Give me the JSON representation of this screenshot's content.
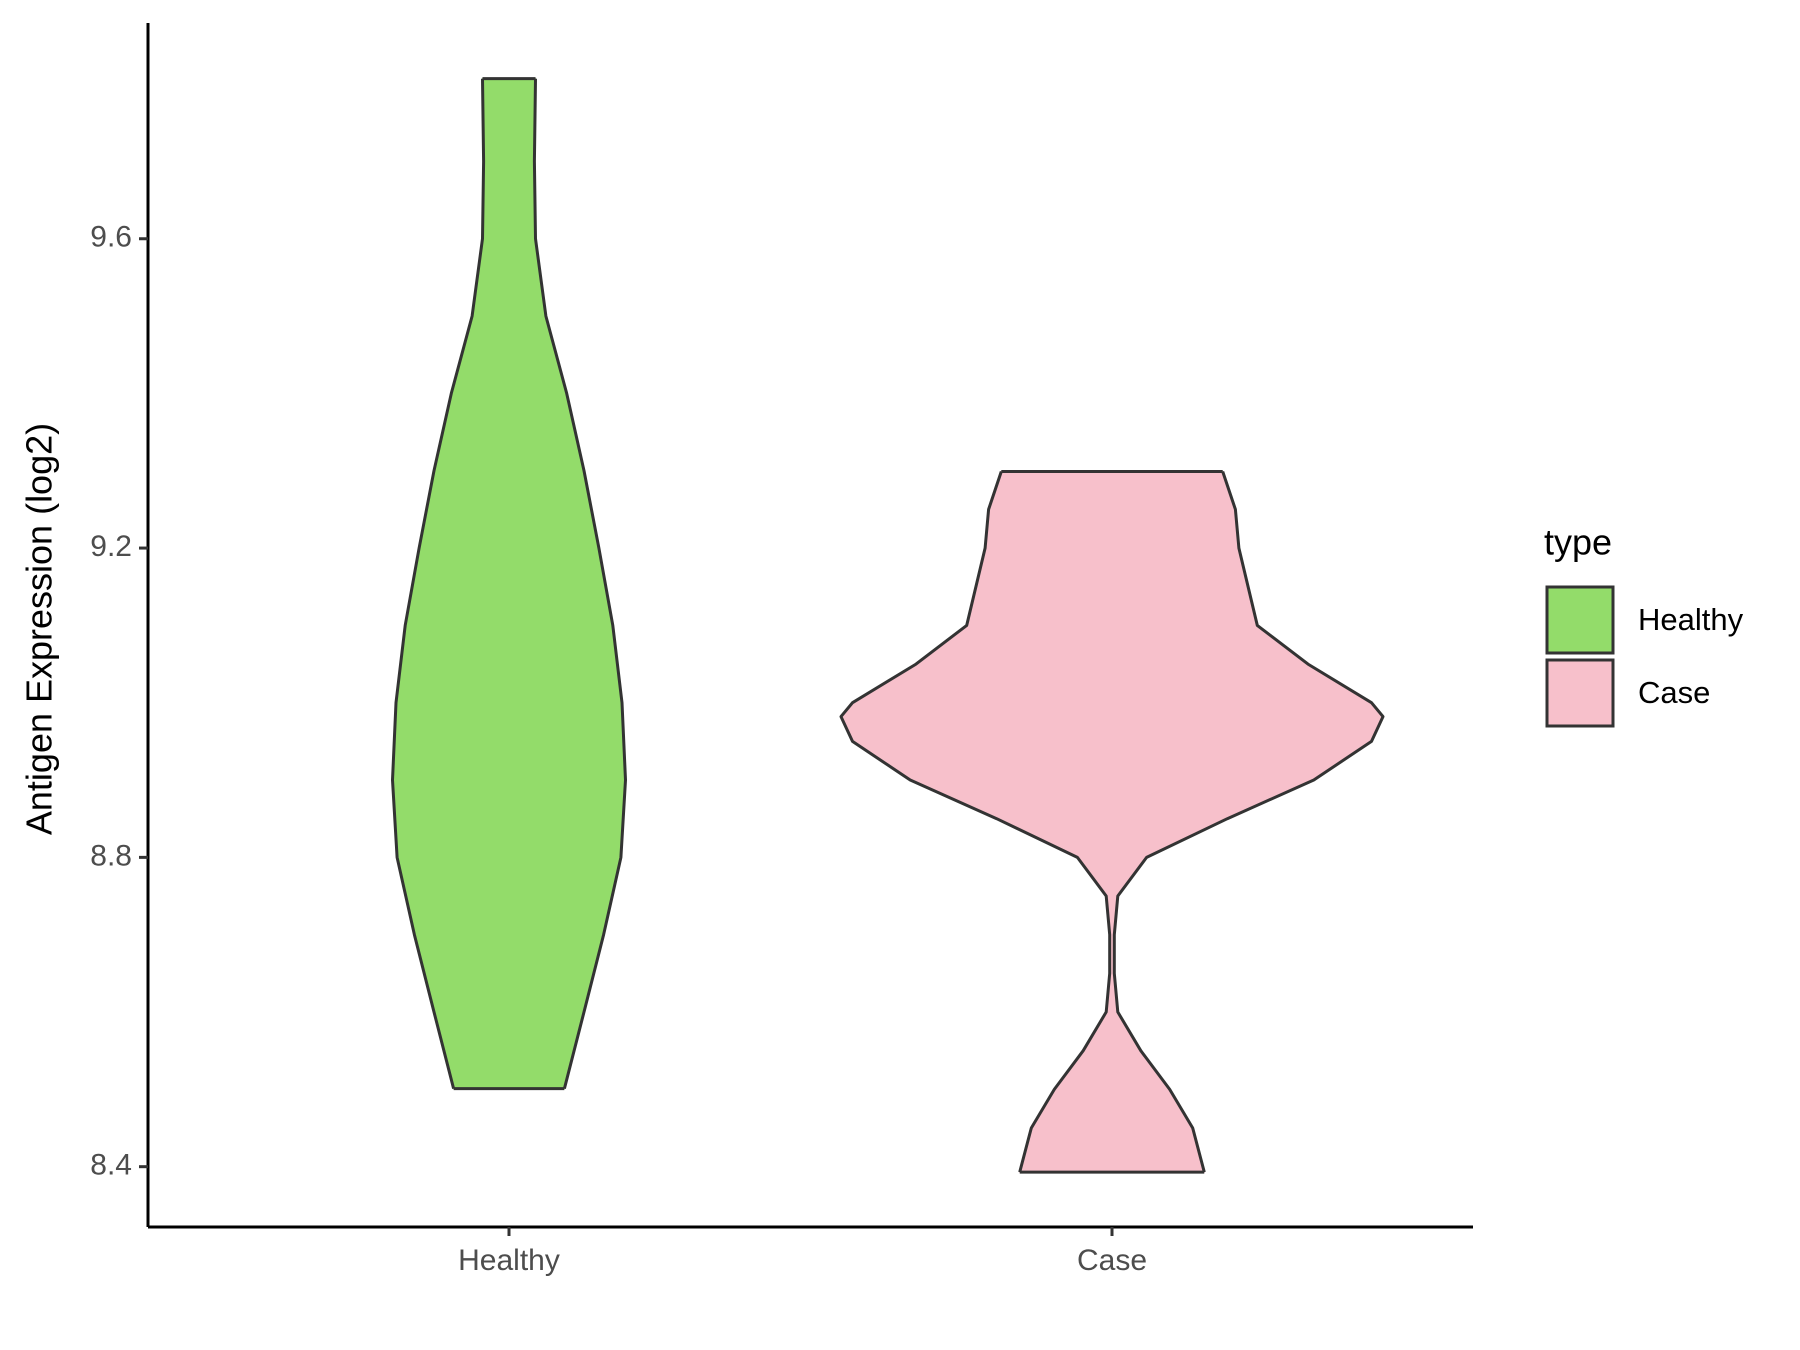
{
  "chart_data": {
    "type": "violin",
    "y_label": "Antigen Expression (log2)",
    "categories": [
      "Healthy",
      "Case"
    ],
    "ylim": [
      8.322,
      9.879
    ],
    "yticks": [
      8.4,
      8.8,
      9.2,
      9.6
    ],
    "legend": {
      "title": "type",
      "position": "right"
    },
    "series": [
      {
        "name": "Healthy",
        "color": "#93dc6a",
        "y": [
          9.807,
          9.7,
          9.6,
          9.5,
          9.4,
          9.3,
          9.2,
          9.1,
          9.0,
          8.9,
          8.8,
          8.7,
          8.6,
          8.501
        ],
        "density": [
          23,
          22,
          23,
          32,
          50,
          65,
          78,
          90,
          98,
          101,
          97,
          82,
          65,
          48
        ]
      },
      {
        "name": "Case",
        "color": "#f7c0cb",
        "y": [
          9.299,
          9.25,
          9.2,
          9.1,
          9.05,
          9.0,
          8.982,
          8.95,
          8.9,
          8.85,
          8.8,
          8.75,
          8.7,
          8.65,
          8.6,
          8.55,
          8.5,
          8.45,
          8.393
        ],
        "density": [
          96,
          107,
          110,
          126,
          170,
          225,
          235,
          225,
          175,
          100,
          30,
          5,
          2,
          2,
          5,
          25,
          50,
          70,
          80
        ]
      }
    ]
  }
}
